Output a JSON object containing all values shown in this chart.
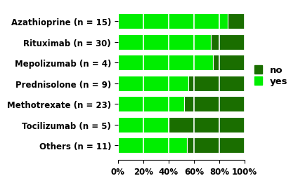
{
  "categories": [
    "Azathioprine (n = 15)",
    "Rituximab (n = 30)",
    "Mepolizumab (n = 4)",
    "Prednisolone (n = 9)",
    "Methotrexate (n = 23)",
    "Tocilizumab (n = 5)",
    "Others (n = 11)"
  ],
  "yes_values": [
    86.7,
    73.3,
    75.0,
    55.6,
    52.2,
    40.0,
    54.5
  ],
  "no_values": [
    13.3,
    26.7,
    25.0,
    44.4,
    47.8,
    60.0,
    45.5
  ],
  "color_yes": "#00ee00",
  "color_no": "#1a6e00",
  "legend_labels": [
    "no",
    "yes"
  ],
  "legend_colors": [
    "#1a6e00",
    "#00ee00"
  ],
  "background_color": "#ffffff",
  "bar_height": 0.75,
  "label_fontsize": 8.5,
  "tick_fontsize": 8.5,
  "legend_fontsize": 9.5
}
